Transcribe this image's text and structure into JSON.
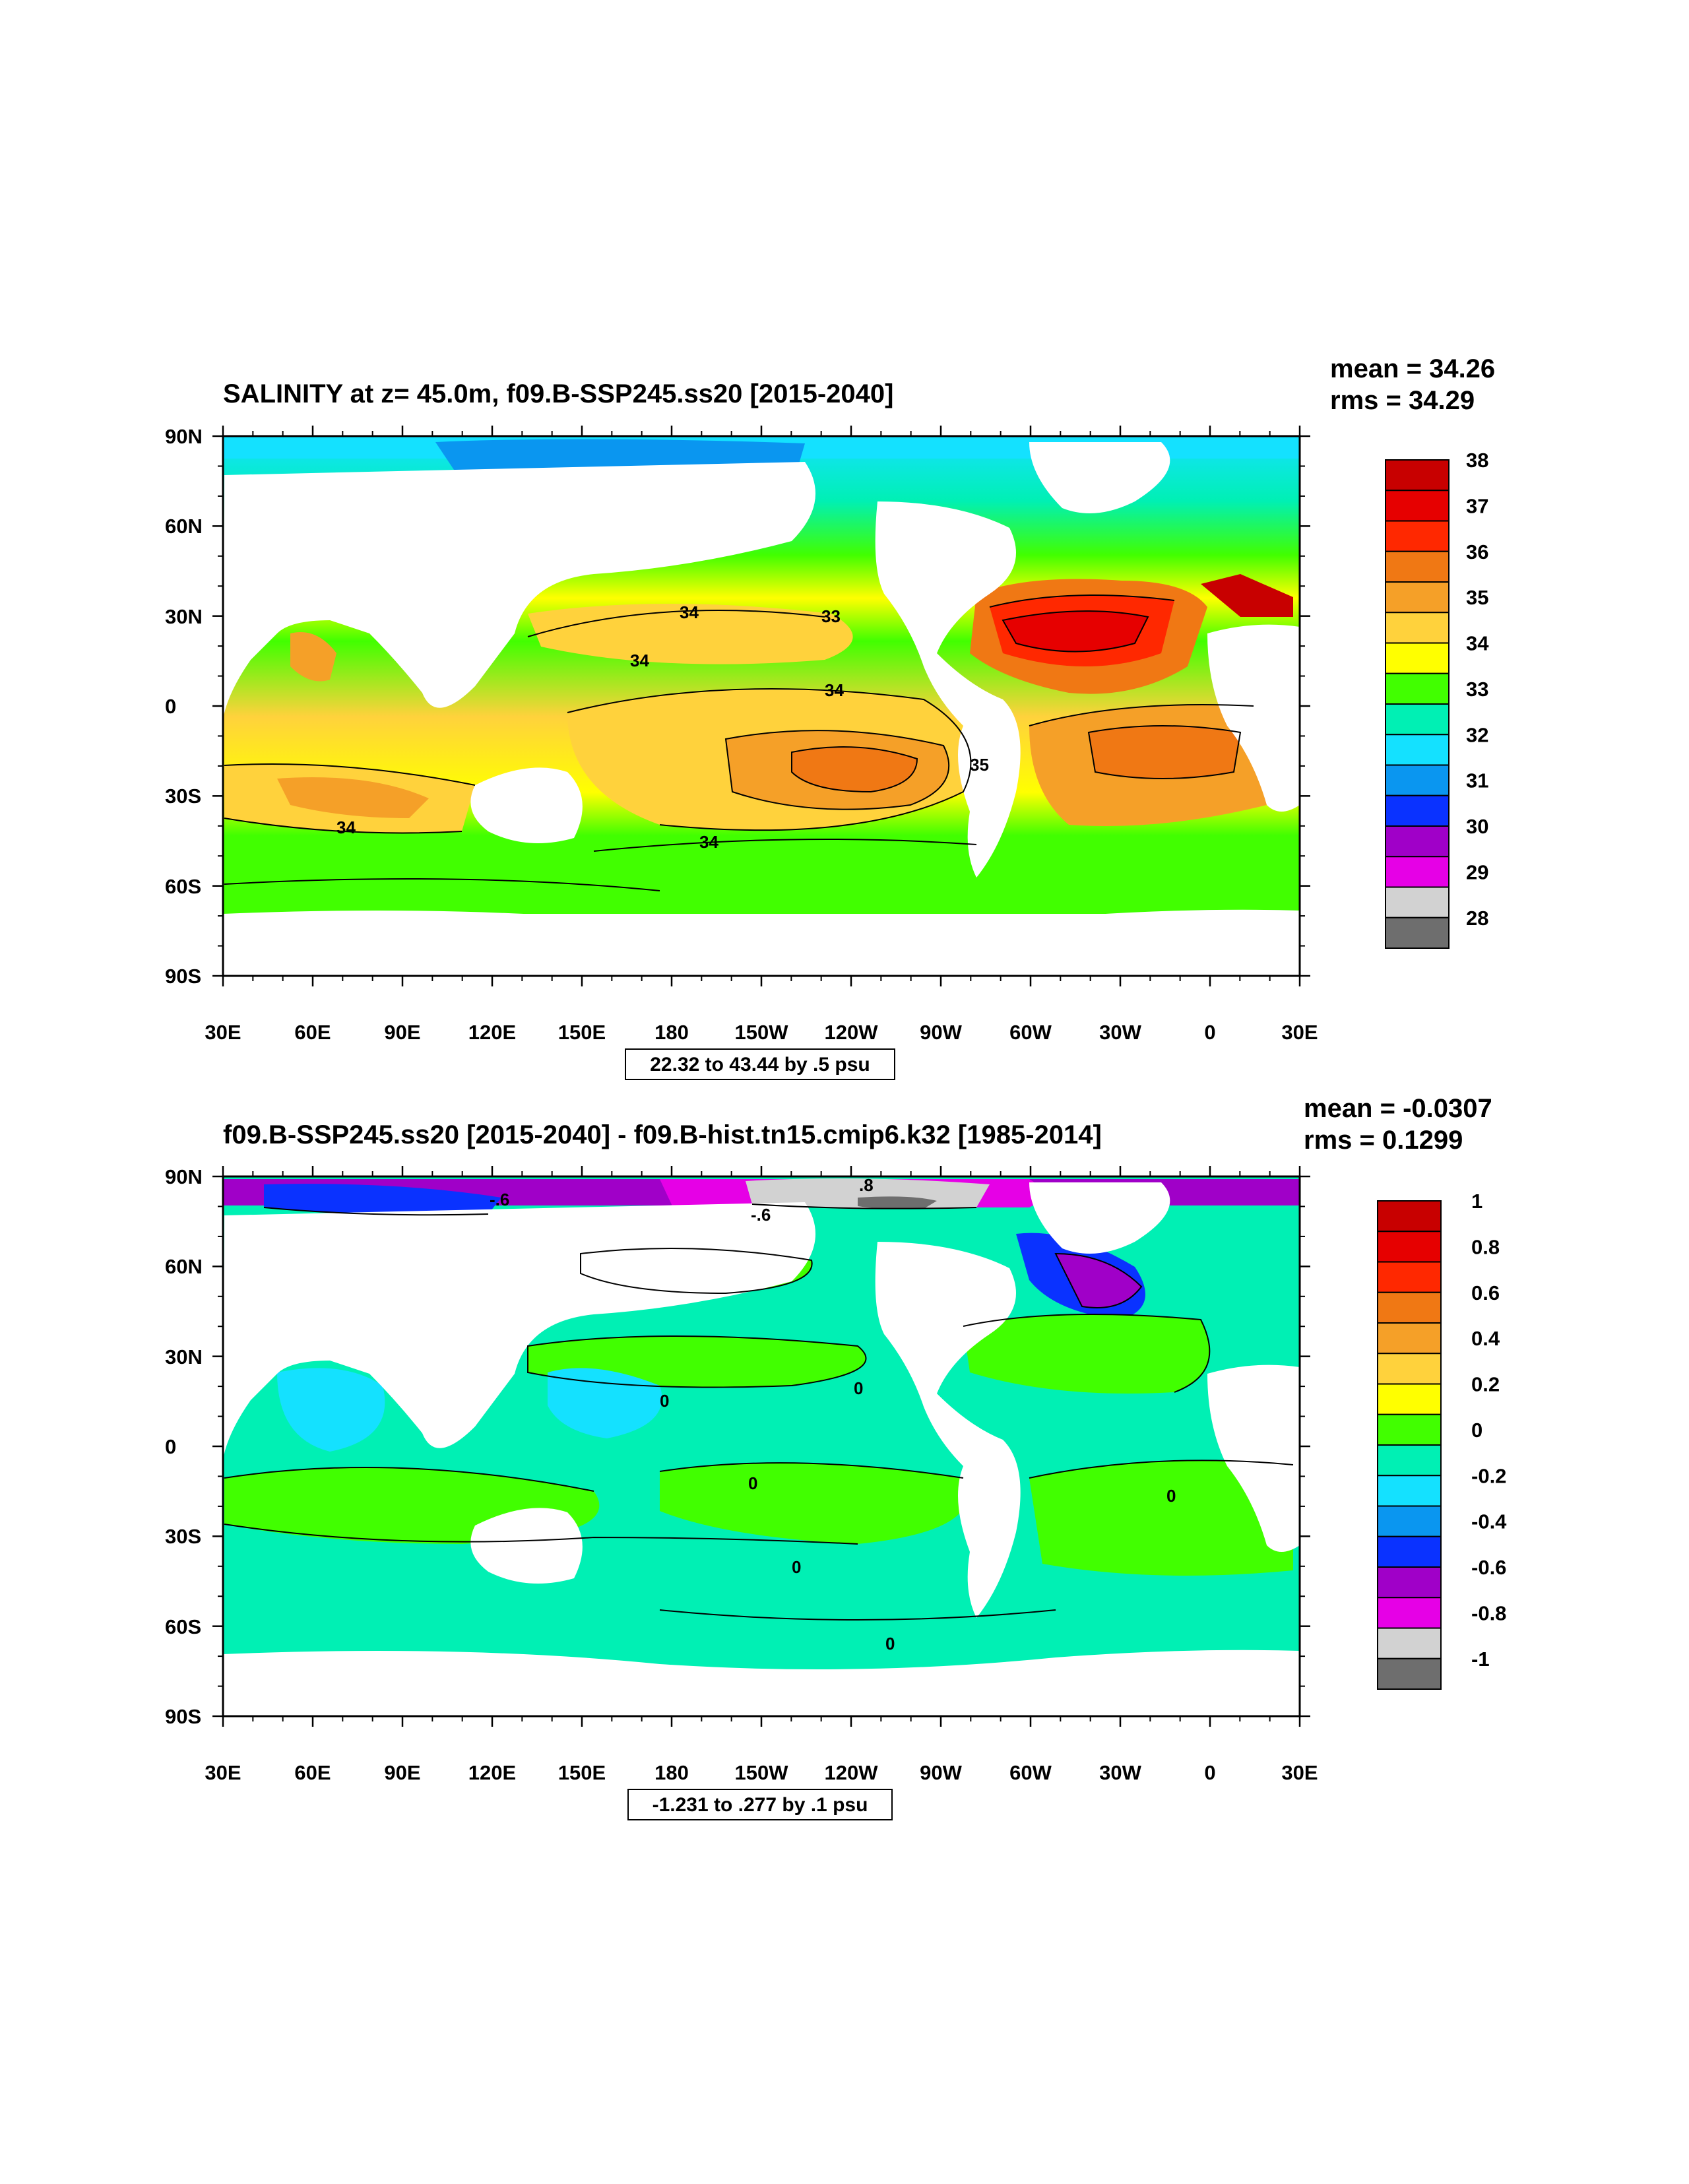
{
  "panels": [
    {
      "title": "SALINITY at z=  45.0m, f09.B-SSP245.ss20 [2015-2040]",
      "stats": [
        "mean = 34.26",
        "rms = 34.29"
      ],
      "range_label": "22.32 to 43.44 by .5 psu",
      "y_ticks": [
        "90N",
        "60N",
        "30N",
        "0",
        "30S",
        "60S",
        "90S"
      ],
      "x_ticks": [
        "30E",
        "60E",
        "90E",
        "120E",
        "150E",
        "180",
        "150W",
        "120W",
        "90W",
        "60W",
        "30W",
        "0",
        "30E"
      ],
      "colorbar": {
        "labels": [
          "38",
          "37",
          "36",
          "35",
          "34",
          "33",
          "32",
          "31",
          "30",
          "29",
          "28"
        ],
        "colors": [
          "#c80000",
          "#e60000",
          "#ff2800",
          "#f07814",
          "#f5a028",
          "#ffd23c",
          "#ffff00",
          "#41ff00",
          "#00f0b4",
          "#14e1ff",
          "#0a96f0",
          "#0a32ff",
          "#a000c8",
          "#e600e6",
          "#d2d2d2",
          "#6e6e6e"
        ]
      },
      "contour_labels": [
        "34",
        "33",
        "34",
        "34",
        "35",
        "34",
        "34"
      ]
    },
    {
      "title": "f09.B-SSP245.ss20 [2015-2040] - f09.B-hist.tn15.cmip6.k32 [1985-2014]",
      "stats": [
        "mean = -0.0307",
        "rms = 0.1299"
      ],
      "range_label": "-1.231 to .277 by .1 psu",
      "y_ticks": [
        "90N",
        "60N",
        "30N",
        "0",
        "30S",
        "60S",
        "90S"
      ],
      "x_ticks": [
        "30E",
        "60E",
        "90E",
        "120E",
        "150E",
        "180",
        "150W",
        "120W",
        "90W",
        "60W",
        "30W",
        "0",
        "30E"
      ],
      "colorbar": {
        "labels": [
          "1",
          "0.8",
          "0.6",
          "0.4",
          "0.2",
          "0",
          "-0.2",
          "-0.4",
          "-0.6",
          "-0.8",
          "-1"
        ],
        "colors": [
          "#c80000",
          "#e60000",
          "#ff2800",
          "#f07814",
          "#f5a028",
          "#ffd23c",
          "#ffff00",
          "#41ff00",
          "#00f0b4",
          "#14e1ff",
          "#0a96f0",
          "#0a32ff",
          "#a000c8",
          "#e600e6",
          "#d2d2d2",
          "#6e6e6e"
        ]
      },
      "contour_labels": [
        "0",
        "0",
        "0",
        "0",
        "0",
        "0",
        "-.6",
        "-.6",
        ".8"
      ]
    }
  ]
}
